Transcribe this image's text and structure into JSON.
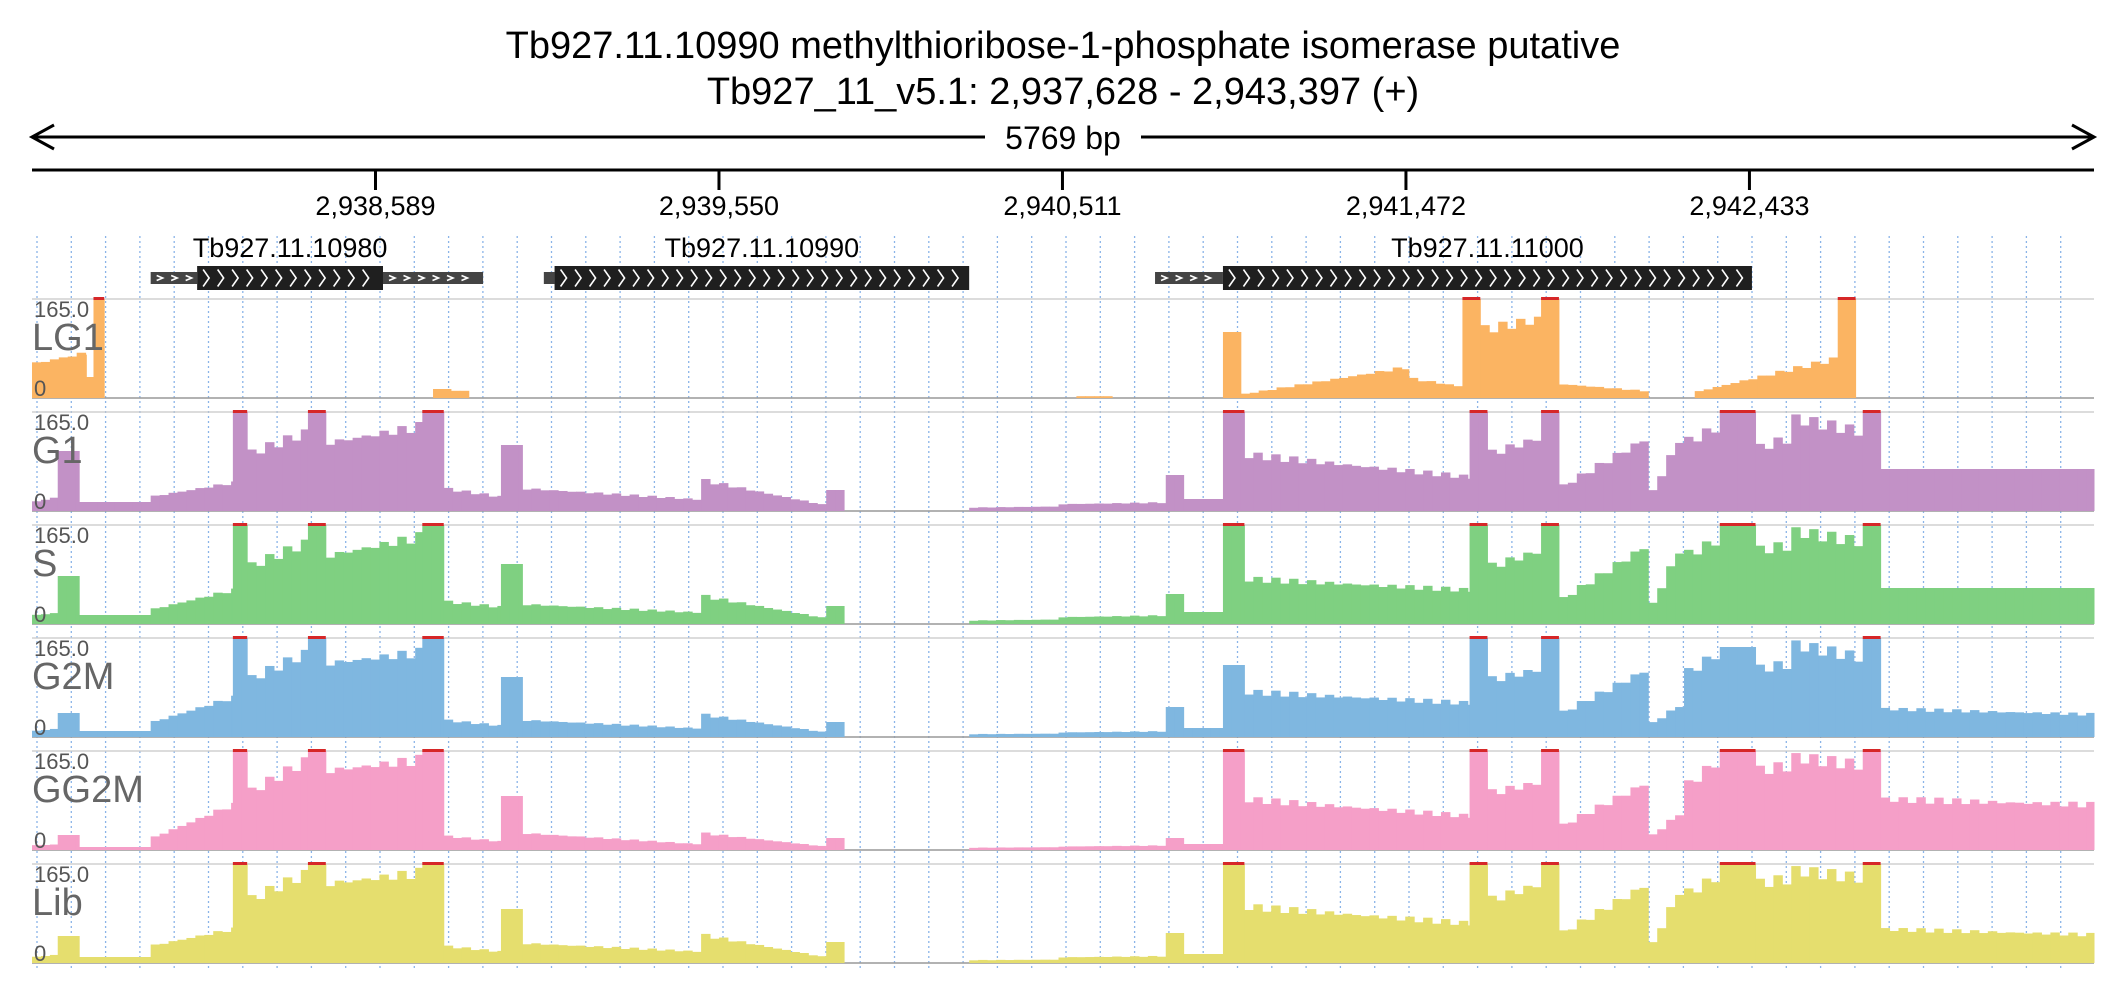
{
  "title": "Tb927.11.10990  methylthioribose-1-phosphate isomerase  putative",
  "location": "Tb927_11_v5.1: 2,937,628 - 2,943,397 (+)",
  "span_label": "5769 bp",
  "region": {
    "start": 2937628,
    "end": 2943397
  },
  "ticks": [
    {
      "pos": 2938589,
      "label": "2,938,589"
    },
    {
      "pos": 2939550,
      "label": "2,939,550"
    },
    {
      "pos": 2940511,
      "label": "2,940,511"
    },
    {
      "pos": 2941472,
      "label": "2,941,472"
    },
    {
      "pos": 2942433,
      "label": "2,942,433"
    }
  ],
  "genes": [
    {
      "name": "Tb927.11.10980",
      "utr5": [
        2937960,
        2938090
      ],
      "cds": [
        2938090,
        2938610
      ],
      "utr3": [
        2938610,
        2938890
      ]
    },
    {
      "name": "Tb927.11.10990",
      "utr5": [
        2939060,
        2939090
      ],
      "cds": [
        2939090,
        2940250
      ],
      "utr3": null
    },
    {
      "name": "Tb927.11.11000",
      "utr5": [
        2940770,
        2940960
      ],
      "cds": [
        2940960,
        2942440
      ],
      "utr3": null
    }
  ],
  "colors": {
    "LG1": "#fbb462",
    "G1": "#c291c6",
    "S": "#7fd081",
    "G2M": "#7fb7e0",
    "GG2M": "#f59fc8",
    "Lib": "#e5de6e",
    "clip": "#d62728",
    "gene_cds": "#1f1f1f",
    "gene_utr": "#444444",
    "grid": "#8ab4e8"
  },
  "chart_data": {
    "type": "area",
    "ymax": 165.0,
    "ymin_label": "0",
    "ymax_label": "165.0",
    "bin_size_bp": 25,
    "tracks": [
      {
        "name": "LG1",
        "segments": [
          [
            2937628,
            2937780,
            60,
            80
          ],
          [
            2937780,
            2937800,
            35,
            35
          ],
          [
            2937800,
            2937830,
            165,
            165
          ],
          [
            2938750,
            2938800,
            15,
            15
          ],
          [
            2938800,
            2938850,
            12,
            12
          ],
          [
            2940550,
            2940650,
            3,
            3
          ],
          [
            2940960,
            2941010,
            110,
            110
          ],
          [
            2941010,
            2941480,
            6,
            55
          ],
          [
            2941480,
            2941630,
            35,
            20
          ],
          [
            2941630,
            2941680,
            165,
            165
          ],
          [
            2941680,
            2941850,
            120,
            140
          ],
          [
            2941850,
            2941900,
            165,
            165
          ],
          [
            2941900,
            2942150,
            25,
            12
          ],
          [
            2942280,
            2942680,
            10,
            70
          ],
          [
            2942680,
            2942730,
            165,
            165
          ]
        ]
      },
      {
        "name": "G1",
        "segments": [
          [
            2937628,
            2937700,
            15,
            25
          ],
          [
            2937700,
            2937760,
            100,
            100
          ],
          [
            2937760,
            2937960,
            15,
            15
          ],
          [
            2937960,
            2938190,
            25,
            50
          ],
          [
            2938190,
            2938230,
            165,
            165
          ],
          [
            2938230,
            2938400,
            100,
            140
          ],
          [
            2938400,
            2938450,
            165,
            165
          ],
          [
            2938450,
            2938720,
            120,
            150
          ],
          [
            2938720,
            2938780,
            165,
            165
          ],
          [
            2938780,
            2938940,
            40,
            25
          ],
          [
            2938940,
            2939000,
            110,
            110
          ],
          [
            2939000,
            2939500,
            40,
            20
          ],
          [
            2939500,
            2939850,
            55,
            10
          ],
          [
            2939850,
            2939900,
            35,
            35
          ],
          [
            2940250,
            2940500,
            6,
            8
          ],
          [
            2940500,
            2940800,
            12,
            15
          ],
          [
            2940800,
            2940850,
            60,
            60
          ],
          [
            2940850,
            2940960,
            20,
            20
          ],
          [
            2940960,
            2941020,
            165,
            165
          ],
          [
            2941020,
            2941650,
            100,
            60
          ],
          [
            2941650,
            2941700,
            165,
            165
          ],
          [
            2941700,
            2941850,
            100,
            130
          ],
          [
            2941850,
            2941900,
            165,
            165
          ],
          [
            2941900,
            2942150,
            40,
            130
          ],
          [
            2942150,
            2942250,
            20,
            140
          ],
          [
            2942250,
            2942350,
            120,
            150
          ],
          [
            2942350,
            2942450,
            165,
            165
          ],
          [
            2942450,
            2942550,
            110,
            130
          ],
          [
            2942550,
            2942750,
            165,
            140
          ],
          [
            2942750,
            2942800,
            165,
            165
          ],
          [
            2942800,
            2943397,
            70,
            70
          ]
        ]
      },
      {
        "name": "S",
        "segments": [
          [
            2937628,
            2937700,
            15,
            20
          ],
          [
            2937700,
            2937760,
            80,
            80
          ],
          [
            2937760,
            2937960,
            15,
            15
          ],
          [
            2937960,
            2938190,
            25,
            60
          ],
          [
            2938190,
            2938230,
            165,
            165
          ],
          [
            2938230,
            2938400,
            100,
            145
          ],
          [
            2938400,
            2938450,
            165,
            165
          ],
          [
            2938450,
            2938720,
            120,
            155
          ],
          [
            2938720,
            2938780,
            165,
            165
          ],
          [
            2938780,
            2938940,
            40,
            30
          ],
          [
            2938940,
            2939000,
            100,
            100
          ],
          [
            2939000,
            2939500,
            35,
            20
          ],
          [
            2939500,
            2939850,
            50,
            10
          ],
          [
            2939850,
            2939900,
            30,
            30
          ],
          [
            2940250,
            2940500,
            6,
            8
          ],
          [
            2940500,
            2940800,
            12,
            15
          ],
          [
            2940800,
            2940850,
            50,
            50
          ],
          [
            2940850,
            2940960,
            20,
            20
          ],
          [
            2940960,
            2941020,
            165,
            165
          ],
          [
            2941020,
            2941650,
            80,
            60
          ],
          [
            2941650,
            2941700,
            165,
            165
          ],
          [
            2941700,
            2941850,
            100,
            130
          ],
          [
            2941850,
            2941900,
            165,
            165
          ],
          [
            2941900,
            2942150,
            40,
            140
          ],
          [
            2942150,
            2942250,
            20,
            145
          ],
          [
            2942250,
            2942350,
            120,
            150
          ],
          [
            2942350,
            2942450,
            165,
            165
          ],
          [
            2942450,
            2942550,
            130,
            140
          ],
          [
            2942550,
            2942750,
            165,
            145
          ],
          [
            2942750,
            2942800,
            165,
            165
          ],
          [
            2942800,
            2943397,
            60,
            60
          ]
        ]
      },
      {
        "name": "G2M",
        "segments": [
          [
            2937628,
            2937700,
            10,
            15
          ],
          [
            2937700,
            2937760,
            40,
            40
          ],
          [
            2937760,
            2937960,
            10,
            10
          ],
          [
            2937960,
            2938190,
            25,
            70
          ],
          [
            2938190,
            2938230,
            165,
            165
          ],
          [
            2938230,
            2938400,
            100,
            150
          ],
          [
            2938400,
            2938450,
            165,
            165
          ],
          [
            2938450,
            2938720,
            130,
            150
          ],
          [
            2938720,
            2938780,
            165,
            165
          ],
          [
            2938780,
            2938940,
            30,
            20
          ],
          [
            2938940,
            2939000,
            100,
            100
          ],
          [
            2939000,
            2939500,
            30,
            15
          ],
          [
            2939500,
            2939850,
            40,
            8
          ],
          [
            2939850,
            2939900,
            25,
            25
          ],
          [
            2940250,
            2940500,
            5,
            6
          ],
          [
            2940500,
            2940800,
            8,
            10
          ],
          [
            2940800,
            2940850,
            50,
            50
          ],
          [
            2940850,
            2940960,
            15,
            15
          ],
          [
            2940960,
            2941020,
            120,
            120
          ],
          [
            2941020,
            2941650,
            80,
            60
          ],
          [
            2941650,
            2941700,
            165,
            165
          ],
          [
            2941700,
            2941850,
            100,
            120
          ],
          [
            2941850,
            2941900,
            165,
            165
          ],
          [
            2941900,
            2942150,
            40,
            120
          ],
          [
            2942150,
            2942250,
            20,
            60
          ],
          [
            2942250,
            2942350,
            110,
            150
          ],
          [
            2942350,
            2942450,
            150,
            150
          ],
          [
            2942450,
            2942550,
            120,
            130
          ],
          [
            2942550,
            2942750,
            165,
            140
          ],
          [
            2942750,
            2942800,
            165,
            165
          ],
          [
            2942800,
            2943397,
            50,
            40
          ]
        ]
      },
      {
        "name": "GG2M",
        "segments": [
          [
            2937628,
            2937700,
            8,
            10
          ],
          [
            2937700,
            2937760,
            25,
            25
          ],
          [
            2937760,
            2937960,
            5,
            5
          ],
          [
            2937960,
            2938190,
            20,
            80
          ],
          [
            2938190,
            2938230,
            165,
            165
          ],
          [
            2938230,
            2938400,
            100,
            160
          ],
          [
            2938400,
            2938450,
            165,
            165
          ],
          [
            2938450,
            2938720,
            140,
            160
          ],
          [
            2938720,
            2938780,
            165,
            165
          ],
          [
            2938780,
            2938940,
            25,
            15
          ],
          [
            2938940,
            2939000,
            90,
            90
          ],
          [
            2939000,
            2939500,
            30,
            10
          ],
          [
            2939500,
            2939850,
            30,
            6
          ],
          [
            2939850,
            2939900,
            20,
            20
          ],
          [
            2940250,
            2940500,
            4,
            5
          ],
          [
            2940500,
            2940800,
            6,
            8
          ],
          [
            2940800,
            2940850,
            20,
            20
          ],
          [
            2940850,
            2940960,
            10,
            10
          ],
          [
            2940960,
            2941020,
            165,
            165
          ],
          [
            2941020,
            2941650,
            90,
            60
          ],
          [
            2941650,
            2941700,
            165,
            165
          ],
          [
            2941700,
            2941850,
            100,
            120
          ],
          [
            2941850,
            2941900,
            165,
            165
          ],
          [
            2941900,
            2942150,
            40,
            120
          ],
          [
            2942150,
            2942250,
            20,
            70
          ],
          [
            2942250,
            2942350,
            110,
            160
          ],
          [
            2942350,
            2942450,
            165,
            165
          ],
          [
            2942450,
            2942550,
            140,
            150
          ],
          [
            2942550,
            2942750,
            165,
            150
          ],
          [
            2942750,
            2942800,
            165,
            165
          ],
          [
            2942800,
            2943397,
            90,
            80
          ]
        ]
      },
      {
        "name": "Lib",
        "segments": [
          [
            2937628,
            2937700,
            10,
            15
          ],
          [
            2937700,
            2937760,
            45,
            45
          ],
          [
            2937760,
            2937960,
            10,
            10
          ],
          [
            2937960,
            2938190,
            30,
            60
          ],
          [
            2938190,
            2938230,
            165,
            165
          ],
          [
            2938230,
            2938400,
            110,
            160
          ],
          [
            2938400,
            2938450,
            165,
            165
          ],
          [
            2938450,
            2938720,
            140,
            160
          ],
          [
            2938720,
            2938780,
            165,
            165
          ],
          [
            2938780,
            2938940,
            30,
            20
          ],
          [
            2938940,
            2939000,
            90,
            90
          ],
          [
            2939000,
            2939500,
            35,
            20
          ],
          [
            2939500,
            2939850,
            50,
            10
          ],
          [
            2939850,
            2939900,
            35,
            35
          ],
          [
            2940250,
            2940500,
            5,
            6
          ],
          [
            2940500,
            2940800,
            10,
            12
          ],
          [
            2940800,
            2940850,
            50,
            50
          ],
          [
            2940850,
            2940960,
            15,
            15
          ],
          [
            2940960,
            2941020,
            165,
            165
          ],
          [
            2941020,
            2941650,
            100,
            70
          ],
          [
            2941650,
            2941700,
            165,
            165
          ],
          [
            2941700,
            2941850,
            110,
            140
          ],
          [
            2941850,
            2941900,
            165,
            165
          ],
          [
            2941900,
            2942150,
            50,
            140
          ],
          [
            2942150,
            2942250,
            20,
            140
          ],
          [
            2942250,
            2942350,
            120,
            155
          ],
          [
            2942350,
            2942450,
            165,
            165
          ],
          [
            2942450,
            2942550,
            140,
            150
          ],
          [
            2942550,
            2942750,
            165,
            150
          ],
          [
            2942750,
            2942800,
            165,
            165
          ],
          [
            2942800,
            2943397,
            60,
            50
          ]
        ]
      }
    ]
  }
}
